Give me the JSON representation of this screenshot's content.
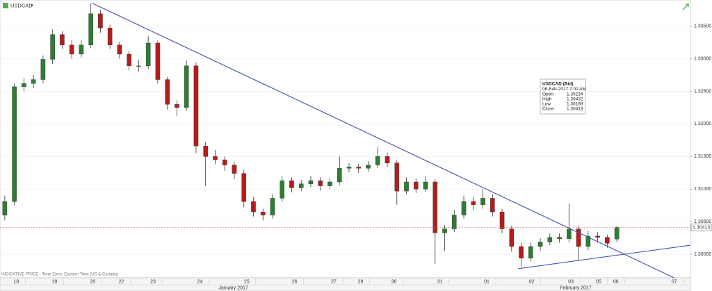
{
  "chart_data": {
    "type": "candlestick",
    "title": "USDCAD",
    "footnote": "INDICATIVE PRICE - Time Zone: Eastern Time (US & Canada)",
    "ylim": [
      1.2964,
      1.339
    ],
    "yticks": [
      {
        "value": 1.335,
        "label": "1.33500"
      },
      {
        "value": 1.33,
        "label": "1.33000"
      },
      {
        "value": 1.325,
        "label": "1.32500"
      },
      {
        "value": 1.32,
        "label": "1.32000"
      },
      {
        "value": 1.315,
        "label": "1.31500"
      },
      {
        "value": 1.31,
        "label": "1.31000"
      },
      {
        "value": 1.305,
        "label": "1.30500"
      },
      {
        "value": 1.3,
        "label": "1.30000"
      }
    ],
    "xlim": [
      0,
      72.2
    ],
    "xticks": [
      {
        "value": 1.7,
        "label": "18"
      },
      {
        "value": 5.7,
        "label": "19"
      },
      {
        "value": 9.7,
        "label": "20"
      },
      {
        "value": 12.7,
        "label": "22"
      },
      {
        "value": 16.0,
        "label": "23"
      },
      {
        "value": 20.9,
        "label": "24"
      },
      {
        "value": 25.8,
        "label": "25"
      },
      {
        "value": 30.8,
        "label": "26"
      },
      {
        "value": 34.9,
        "label": "27"
      },
      {
        "value": 37.7,
        "label": "29"
      },
      {
        "value": 41.2,
        "label": "30"
      },
      {
        "value": 46.0,
        "label": "31"
      },
      {
        "value": 50.9,
        "label": "01"
      },
      {
        "value": 55.6,
        "label": "02"
      },
      {
        "value": 59.7,
        "label": "03"
      },
      {
        "value": 62.6,
        "label": "05"
      },
      {
        "value": 64.4,
        "label": "06"
      },
      {
        "value": 70.5,
        "label": "07"
      }
    ],
    "month_ticks": [
      {
        "value": 24.4,
        "label": "January 2017"
      },
      {
        "value": 60.2,
        "label": "February 2017"
      }
    ],
    "up_color": "#2e7d32",
    "down_color": "#b71c1c",
    "grid": true,
    "series": {
      "open": [
        1.306,
        1.3081,
        1.3257,
        1.3262,
        1.3268,
        1.3299,
        1.3337,
        1.3321,
        1.3307,
        1.3321,
        1.3369,
        1.3347,
        1.3321,
        1.3307,
        1.3289,
        1.3289,
        1.3324,
        1.3268,
        1.323,
        1.3225,
        1.3289,
        1.3166,
        1.315,
        1.3145,
        1.3137,
        1.3124,
        1.3081,
        1.3065,
        1.306,
        1.3086,
        1.3113,
        1.3102,
        1.3108,
        1.3113,
        1.3105,
        1.3111,
        1.3132,
        1.3134,
        1.3132,
        1.3137,
        1.315,
        1.314,
        1.3097,
        1.3111,
        1.31,
        1.3111,
        1.3033,
        1.3039,
        1.306,
        1.3081,
        1.3076,
        1.3086,
        1.3065,
        1.3039,
        1.3012,
        1.2994,
        1.3012,
        1.3019,
        1.3026,
        1.3024,
        1.3039,
        1.3012,
        1.3028,
        1.3026,
        1.30234
      ],
      "high": [
        1.309,
        1.3262,
        1.327,
        1.3275,
        1.3305,
        1.3345,
        1.3342,
        1.3328,
        1.3328,
        1.3385,
        1.3375,
        1.3352,
        1.3326,
        1.3312,
        1.3298,
        1.3335,
        1.3328,
        1.3272,
        1.3236,
        1.3297,
        1.3294,
        1.3172,
        1.316,
        1.315,
        1.3142,
        1.313,
        1.3088,
        1.307,
        1.3092,
        1.312,
        1.3118,
        1.3114,
        1.312,
        1.3118,
        1.3117,
        1.315,
        1.314,
        1.3139,
        1.3143,
        1.3165,
        1.3156,
        1.3144,
        1.3118,
        1.3116,
        1.312,
        1.3115,
        1.3045,
        1.3068,
        1.309,
        1.3088,
        1.31,
        1.3092,
        1.307,
        1.3044,
        1.3018,
        1.3018,
        1.3025,
        1.3032,
        1.3032,
        1.3078,
        1.3044,
        1.3036,
        1.3034,
        1.303,
        1.30432
      ],
      "low": [
        1.3052,
        1.3075,
        1.325,
        1.3255,
        1.3262,
        1.3292,
        1.3315,
        1.33,
        1.3302,
        1.3316,
        1.334,
        1.3315,
        1.33,
        1.3282,
        1.328,
        1.3284,
        1.3262,
        1.3222,
        1.3212,
        1.322,
        1.3155,
        1.3105,
        1.3138,
        1.3128,
        1.3115,
        1.3072,
        1.3058,
        1.3052,
        1.3055,
        1.308,
        1.3095,
        1.3097,
        1.3103,
        1.3098,
        1.31,
        1.3106,
        1.3126,
        1.3125,
        1.3127,
        1.3132,
        1.3134,
        1.3076,
        1.3092,
        1.3094,
        1.3095,
        1.2985,
        1.3005,
        1.3034,
        1.3055,
        1.3068,
        1.307,
        1.3058,
        1.3032,
        1.3004,
        1.2982,
        1.2989,
        1.3006,
        1.3014,
        1.3018,
        1.3018,
        1.299,
        1.3006,
        1.3018,
        1.301,
        1.30189
      ],
      "close": [
        1.3081,
        1.3257,
        1.3262,
        1.3268,
        1.3299,
        1.3337,
        1.3321,
        1.3307,
        1.3321,
        1.3369,
        1.3347,
        1.3321,
        1.3307,
        1.3289,
        1.3289,
        1.3324,
        1.3268,
        1.323,
        1.3225,
        1.3289,
        1.3166,
        1.315,
        1.3145,
        1.3137,
        1.3124,
        1.3081,
        1.3065,
        1.306,
        1.3086,
        1.3113,
        1.3102,
        1.3108,
        1.3113,
        1.3105,
        1.3111,
        1.3132,
        1.3134,
        1.3132,
        1.3137,
        1.315,
        1.314,
        1.3097,
        1.3111,
        1.31,
        1.3111,
        1.3033,
        1.3039,
        1.306,
        1.3081,
        1.3076,
        1.3086,
        1.3065,
        1.3039,
        1.3012,
        1.2994,
        1.3012,
        1.3019,
        1.3026,
        1.3024,
        1.3039,
        1.3012,
        1.3028,
        1.3026,
        1.3017,
        1.30413
      ]
    },
    "trendlines": [
      {
        "color": "#3f51b5",
        "x": [
          9.67,
          70.5
        ],
        "y": [
          1.3385,
          1.2964
        ]
      },
      {
        "color": "#3f51b5",
        "x": [
          54.2,
          72.2
        ],
        "y": [
          1.2978,
          1.3014
        ]
      }
    ],
    "last_price_color": "#e57373",
    "tooltip": {
      "title": "USDCAD (Bid)",
      "time": "06-Feb-2017 7:00 AM",
      "labels": [
        "Open",
        "High",
        "Low",
        "Close"
      ]
    }
  }
}
